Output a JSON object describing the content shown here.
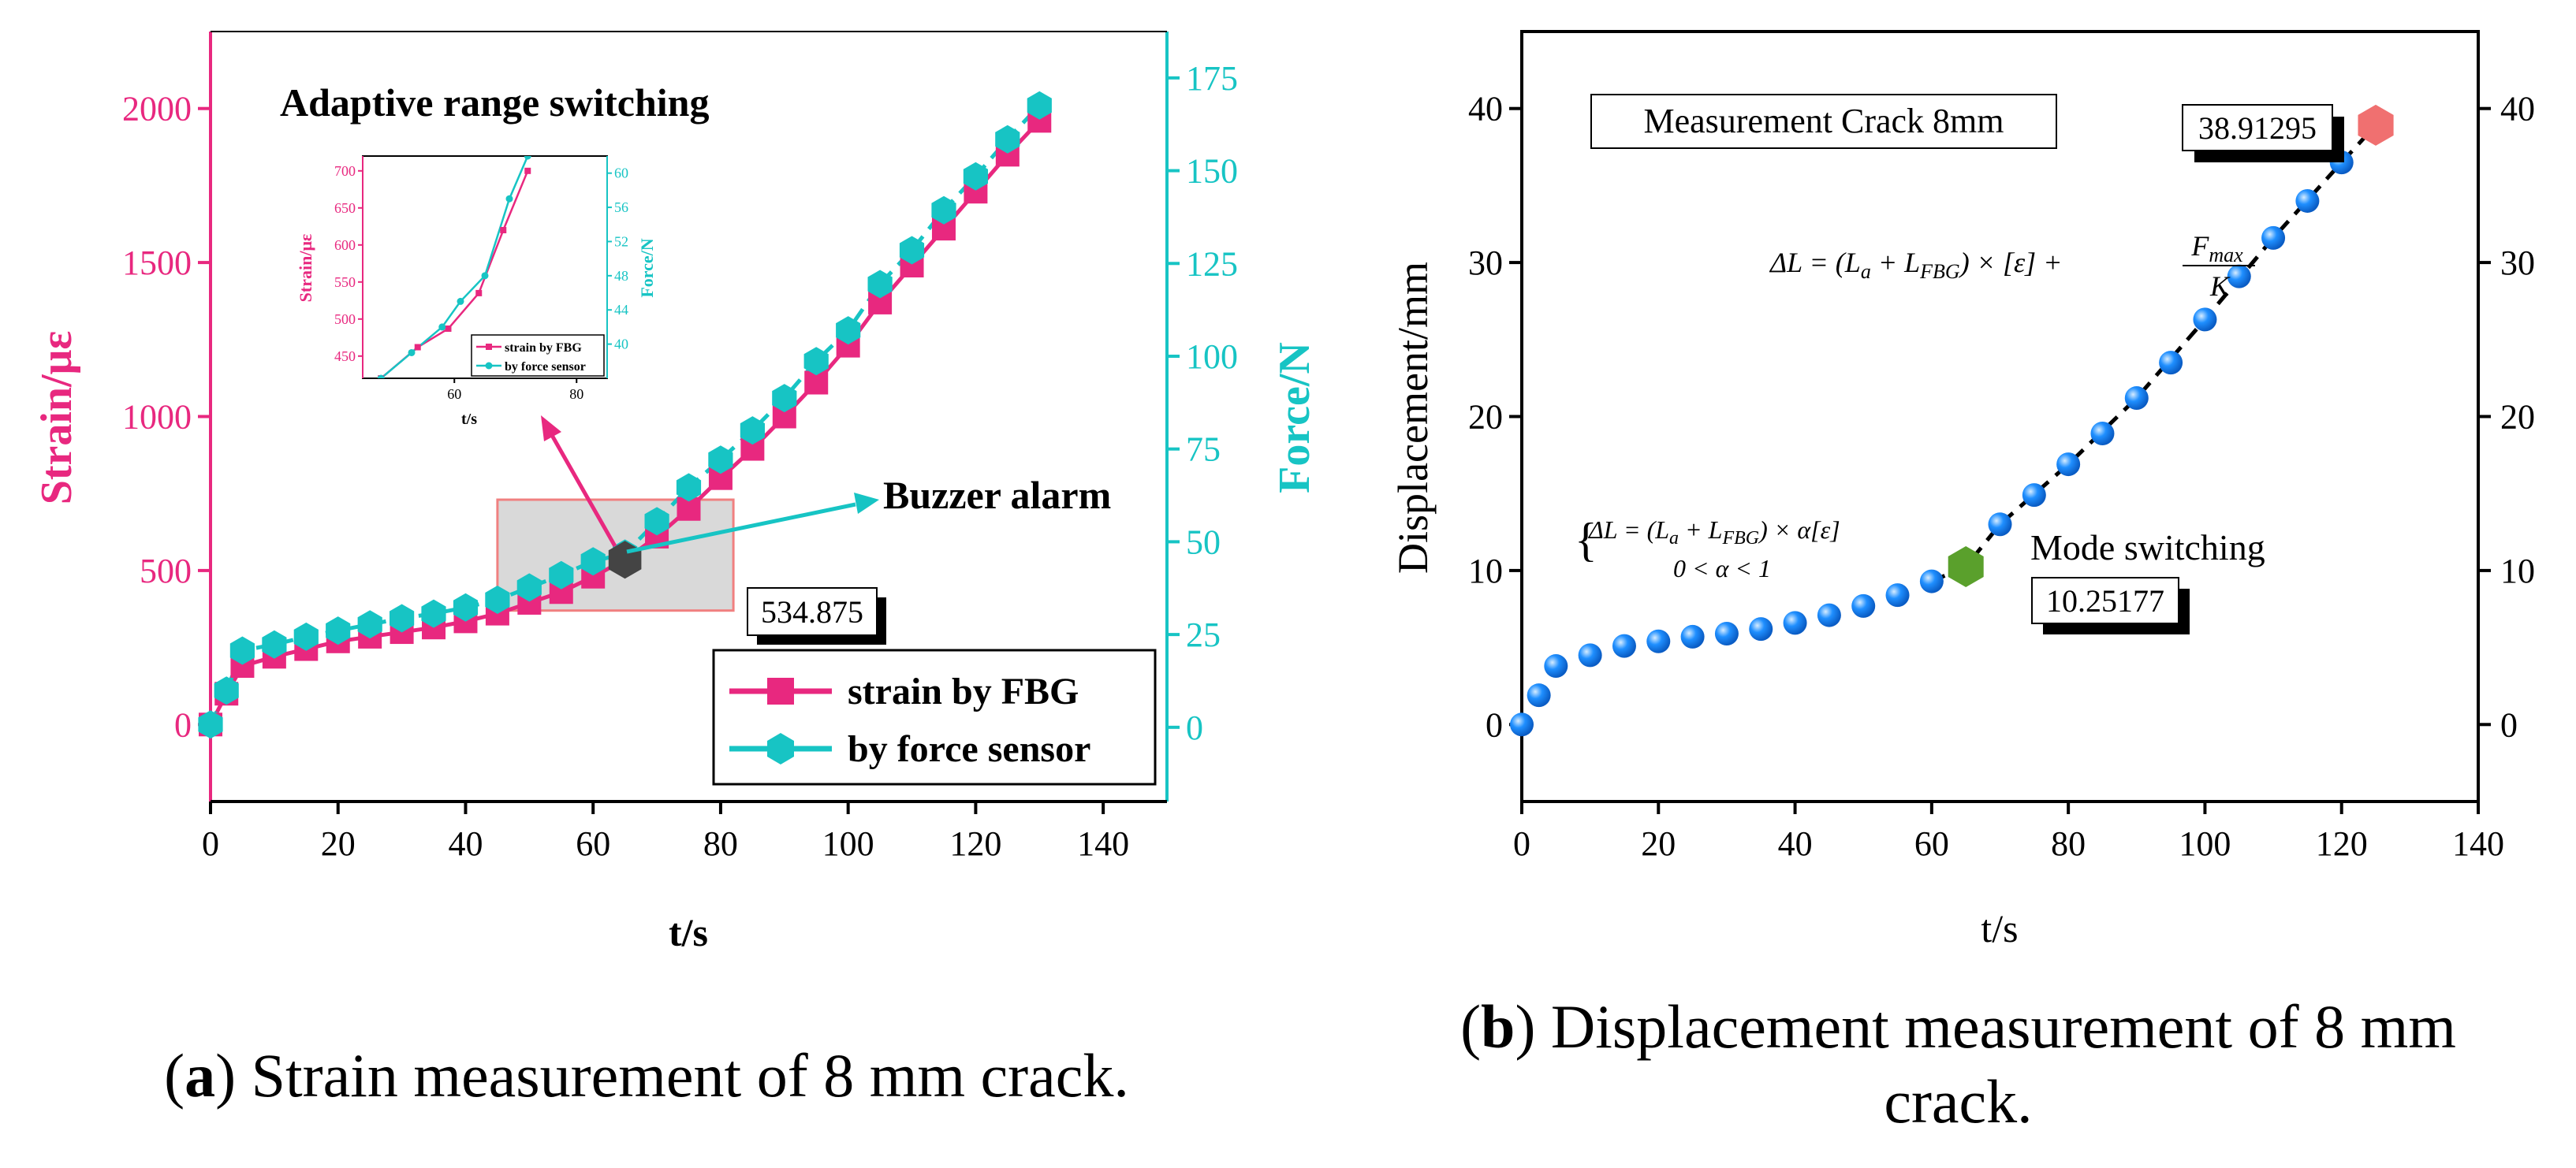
{
  "colors": {
    "strain": "#e8287f",
    "force": "#17c4c4",
    "displacement": "#1f8fff",
    "switch_marker": "#5aa02c",
    "end_marker": "#f07070",
    "alarm_marker": "#444444",
    "highlight_box": "#d9d9d9"
  },
  "captions": {
    "a_label": "a",
    "a_text": "Strain measurement of 8 mm crack.",
    "b_label": "b",
    "b_text_line1": "Displacement measurement of 8 mm",
    "b_text_line2": "crack."
  },
  "chart_data": [
    {
      "type": "line",
      "panel": "a",
      "title": "Adaptive range switching",
      "xlabel": "t/s",
      "ylabel": "Strain/με",
      "y2label": "Force/N",
      "xlim": [
        0,
        150
      ],
      "ylim": [
        -250,
        2250
      ],
      "y2lim": [
        -20,
        187.5
      ],
      "xticks": [
        0,
        20,
        40,
        60,
        80,
        100,
        120,
        140
      ],
      "yticks": [
        0,
        500,
        1000,
        1500,
        2000
      ],
      "y2ticks": [
        0,
        25,
        50,
        75,
        100,
        125,
        150,
        175
      ],
      "x": [
        0,
        2.5,
        5,
        10,
        15,
        20,
        25,
        30,
        35,
        40,
        45,
        50,
        55,
        60,
        65,
        70,
        75,
        80,
        85,
        90,
        95,
        100,
        105,
        110,
        115,
        120,
        125,
        130
      ],
      "series": [
        {
          "name": "strain by FBG",
          "axis": "left",
          "values": [
            0,
            100,
            190,
            220,
            245,
            270,
            285,
            300,
            315,
            335,
            360,
            395,
            430,
            480,
            534.875,
            610,
            700,
            800,
            895,
            1000,
            1110,
            1230,
            1370,
            1490,
            1610,
            1730,
            1850,
            1960
          ]
        },
        {
          "name": "by force sensor",
          "axis": "left",
          "values": [
            0,
            110,
            240,
            260,
            285,
            305,
            325,
            345,
            360,
            380,
            405,
            445,
            485,
            530,
            555,
            660,
            770,
            860,
            955,
            1060,
            1180,
            1280,
            1430,
            1540,
            1670,
            1780,
            1900,
            2010
          ]
        }
      ],
      "legend": [
        "strain by FBG",
        "by force sensor"
      ],
      "legend_position": "bottom-right",
      "annotation_alarm": "Buzzer alarm",
      "annotation_value": "534.875",
      "highlight_range_x": [
        45,
        82
      ],
      "highlight_range_y": [
        370,
        730
      ],
      "inset": {
        "xlabel": "t/s",
        "ylabel": "Strain/με",
        "y2label": "Force/N",
        "xlim": [
          45,
          85
        ],
        "ylim": [
          420,
          720
        ],
        "y2lim": [
          36,
          62
        ],
        "xticks": [
          60,
          80
        ],
        "yticks": [
          450,
          500,
          550,
          600,
          650,
          700
        ],
        "y2ticks": [
          40,
          44,
          48,
          52,
          56,
          60
        ],
        "x_strain": [
          48,
          54,
          59,
          64,
          68,
          72
        ],
        "strain": [
          420,
          462,
          487,
          535,
          620,
          700
        ],
        "x_force": [
          48,
          53,
          58,
          61,
          65,
          69,
          72
        ],
        "force": [
          36,
          39,
          42,
          45,
          48,
          57,
          62
        ],
        "legend": [
          "strain by FBG",
          "by force sensor"
        ]
      }
    },
    {
      "type": "scatter",
      "panel": "b",
      "xlabel": "t/s",
      "ylabel": "Displacement/mm",
      "xlim": [
        0,
        140
      ],
      "ylim": [
        -5,
        45
      ],
      "xticks": [
        0,
        20,
        40,
        60,
        80,
        100,
        120,
        140
      ],
      "yticks": [
        0,
        10,
        20,
        30,
        40
      ],
      "series": [
        {
          "name": "displacement",
          "x": [
            0,
            2.5,
            5,
            10,
            15,
            20,
            25,
            30,
            35,
            40,
            45,
            50,
            55,
            60,
            70,
            75,
            80,
            85,
            90,
            95,
            100,
            105,
            110,
            115,
            120
          ],
          "values": [
            0,
            1.9,
            3.8,
            4.5,
            5.1,
            5.4,
            5.7,
            5.9,
            6.2,
            6.6,
            7.1,
            7.7,
            8.4,
            9.3,
            13.0,
            14.9,
            16.9,
            18.9,
            21.2,
            23.5,
            26.3,
            29.1,
            31.6,
            34.0,
            36.5
          ]
        }
      ],
      "trend_x": [
        60,
        65,
        70,
        80,
        90,
        100,
        110,
        120,
        125
      ],
      "trend_y": [
        9.3,
        10.25177,
        13.0,
        16.9,
        21.2,
        26.3,
        31.6,
        36.5,
        38.91295
      ],
      "switch_point": {
        "x": 65,
        "y": 10.25177,
        "label": "10.25177"
      },
      "end_point": {
        "x": 125,
        "y": 38.91295,
        "label": "38.91295"
      },
      "title_box": "Measurement Crack 8mm",
      "mode_switching": "Mode switching",
      "formula_top": {
        "lhs": "ΔL = (L",
        "a_sub": "a",
        "plus": " + L",
        "fbg_sub": "FBG",
        "rest": ") × [ε] + ",
        "num": "F",
        "num_sub": "max",
        "den": "K"
      },
      "formula_left": {
        "line1_pre": "ΔL = (L",
        "a_sub": "a",
        "plus": " + L",
        "fbg_sub": "FBG",
        "line1_post": ") × α[ε]",
        "line2": "0 < α < 1",
        "brace": "{"
      }
    }
  ]
}
